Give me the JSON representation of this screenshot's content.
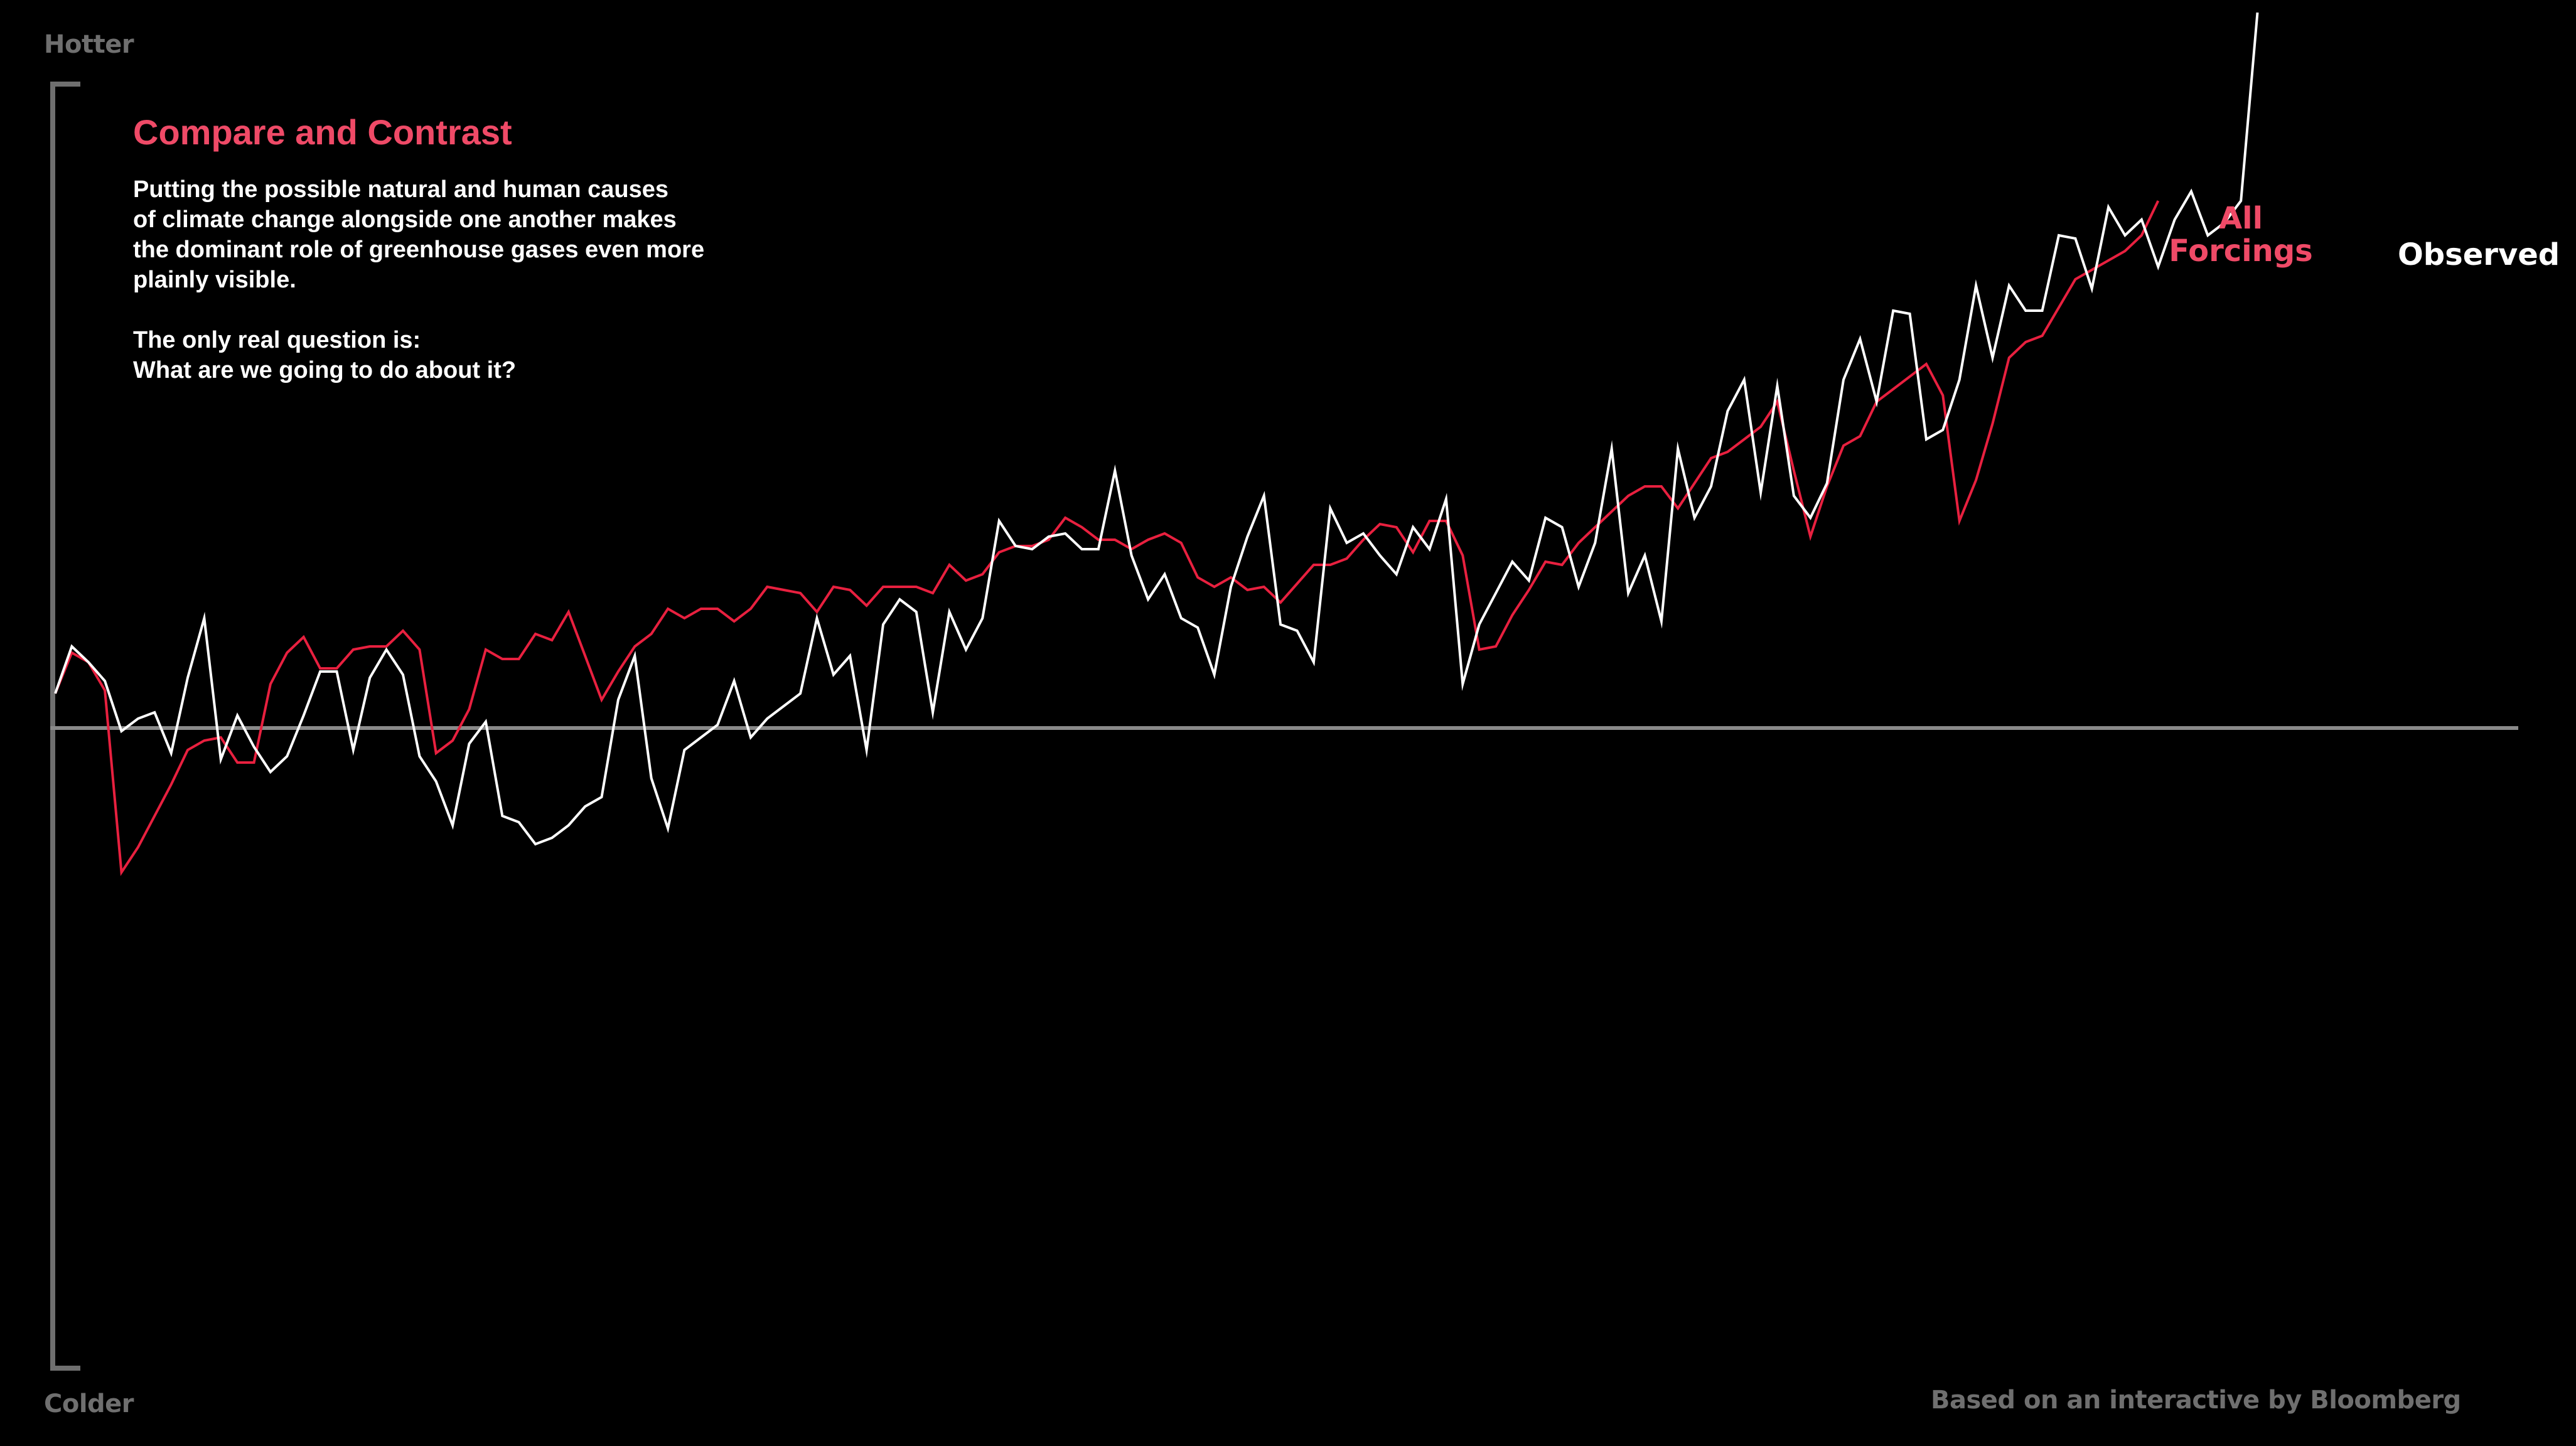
{
  "header": {
    "title": "Compare and Contrast",
    "description_lines": [
      "Putting the possible natural and human causes",
      "of climate change alongside one another makes",
      "the dominant role of greenhouse gases even more",
      "plainly visible."
    ],
    "question_lines": [
      "The only real question is:",
      "What are we going to do about it?"
    ]
  },
  "axis": {
    "top_label": "Hotter",
    "bottom_label": "Colder"
  },
  "source": "Based on an interactive by Bloomberg",
  "colors": {
    "background": "#000000",
    "forcings": "#e8203f",
    "forcings_label": "#ef4a67",
    "observed": "#ffffff",
    "axis": "#6f6f6f",
    "baseline": "#8a8a8a"
  },
  "chart_data": {
    "type": "line",
    "title": "Compare and Contrast",
    "xlabel": "",
    "ylabel": "",
    "y_top_label": "Hotter",
    "y_bottom_label": "Colder",
    "baseline": 0,
    "xlim": [
      0,
      138
    ],
    "ylim": [
      -1.0,
      1.0
    ],
    "grid": false,
    "legend": "inline labels at right end of each series",
    "series": [
      {
        "name": "All Forcings",
        "label_lines": [
          "All",
          "Forcings"
        ],
        "color": "#e8203f",
        "x_start": 0,
        "values": [
          0.055,
          0.12,
          0.105,
          0.06,
          -0.23,
          -0.19,
          -0.14,
          -0.09,
          -0.035,
          -0.02,
          -0.015,
          -0.055,
          -0.055,
          0.07,
          0.12,
          0.145,
          0.095,
          0.095,
          0.125,
          0.13,
          0.13,
          0.155,
          0.125,
          -0.04,
          -0.02,
          0.03,
          0.125,
          0.11,
          0.11,
          0.15,
          0.14,
          0.185,
          0.115,
          0.045,
          0.09,
          0.13,
          0.15,
          0.19,
          0.175,
          0.19,
          0.19,
          0.17,
          0.19,
          0.225,
          0.22,
          0.215,
          0.185,
          0.225,
          0.22,
          0.195,
          0.225,
          0.225,
          0.225,
          0.215,
          0.26,
          0.235,
          0.245,
          0.28,
          0.29,
          0.29,
          0.3,
          0.335,
          0.32,
          0.3,
          0.3,
          0.285,
          0.3,
          0.31,
          0.295,
          0.24,
          0.225,
          0.24,
          0.22,
          0.225,
          0.2,
          0.23,
          0.26,
          0.26,
          0.27,
          0.3,
          0.325,
          0.32,
          0.28,
          0.33,
          0.33,
          0.275,
          0.125,
          0.13,
          0.18,
          0.22,
          0.265,
          0.26,
          0.295,
          0.32,
          0.345,
          0.37,
          0.385,
          0.385,
          0.35,
          0.39,
          0.43,
          0.44,
          0.46,
          0.48,
          0.52,
          0.41,
          0.305,
          0.385,
          0.45,
          0.465,
          0.52,
          0.54,
          0.56,
          0.58,
          0.53,
          0.33,
          0.395,
          0.485,
          0.59,
          0.615,
          0.625,
          0.67,
          0.715,
          0.73,
          0.745,
          0.76,
          0.785,
          0.84
        ]
      },
      {
        "name": "Observed",
        "label_lines": [
          "Observed"
        ],
        "color": "#ffffff",
        "x_start": 0,
        "values": [
          0.055,
          0.13,
          0.105,
          0.075,
          -0.005,
          0.015,
          0.025,
          -0.04,
          0.08,
          0.175,
          -0.05,
          0.02,
          -0.03,
          -0.07,
          -0.045,
          0.02,
          0.09,
          0.09,
          -0.035,
          0.08,
          0.125,
          0.085,
          -0.045,
          -0.085,
          -0.155,
          -0.025,
          0.01,
          -0.14,
          -0.15,
          -0.185,
          -0.175,
          -0.155,
          -0.125,
          -0.11,
          0.045,
          0.115,
          -0.08,
          -0.16,
          -0.035,
          -0.015,
          0.005,
          0.075,
          -0.015,
          0.015,
          0.035,
          0.055,
          0.175,
          0.085,
          0.115,
          -0.035,
          0.165,
          0.205,
          0.185,
          0.025,
          0.185,
          0.125,
          0.175,
          0.33,
          0.29,
          0.285,
          0.305,
          0.31,
          0.285,
          0.285,
          0.41,
          0.275,
          0.205,
          0.245,
          0.175,
          0.16,
          0.085,
          0.225,
          0.305,
          0.37,
          0.165,
          0.155,
          0.105,
          0.35,
          0.295,
          0.31,
          0.275,
          0.245,
          0.32,
          0.285,
          0.365,
          0.07,
          0.165,
          0.215,
          0.265,
          0.235,
          0.335,
          0.32,
          0.225,
          0.295,
          0.445,
          0.215,
          0.275,
          0.17,
          0.445,
          0.335,
          0.385,
          0.505,
          0.555,
          0.375,
          0.545,
          0.37,
          0.335,
          0.39,
          0.555,
          0.62,
          0.52,
          0.665,
          0.66,
          0.46,
          0.475,
          0.555,
          0.705,
          0.59,
          0.705,
          0.665,
          0.665,
          0.785,
          0.78,
          0.7,
          0.83,
          0.785,
          0.81,
          0.735,
          0.81,
          0.855,
          0.785,
          0.805,
          0.84,
          1.14
        ]
      }
    ]
  }
}
